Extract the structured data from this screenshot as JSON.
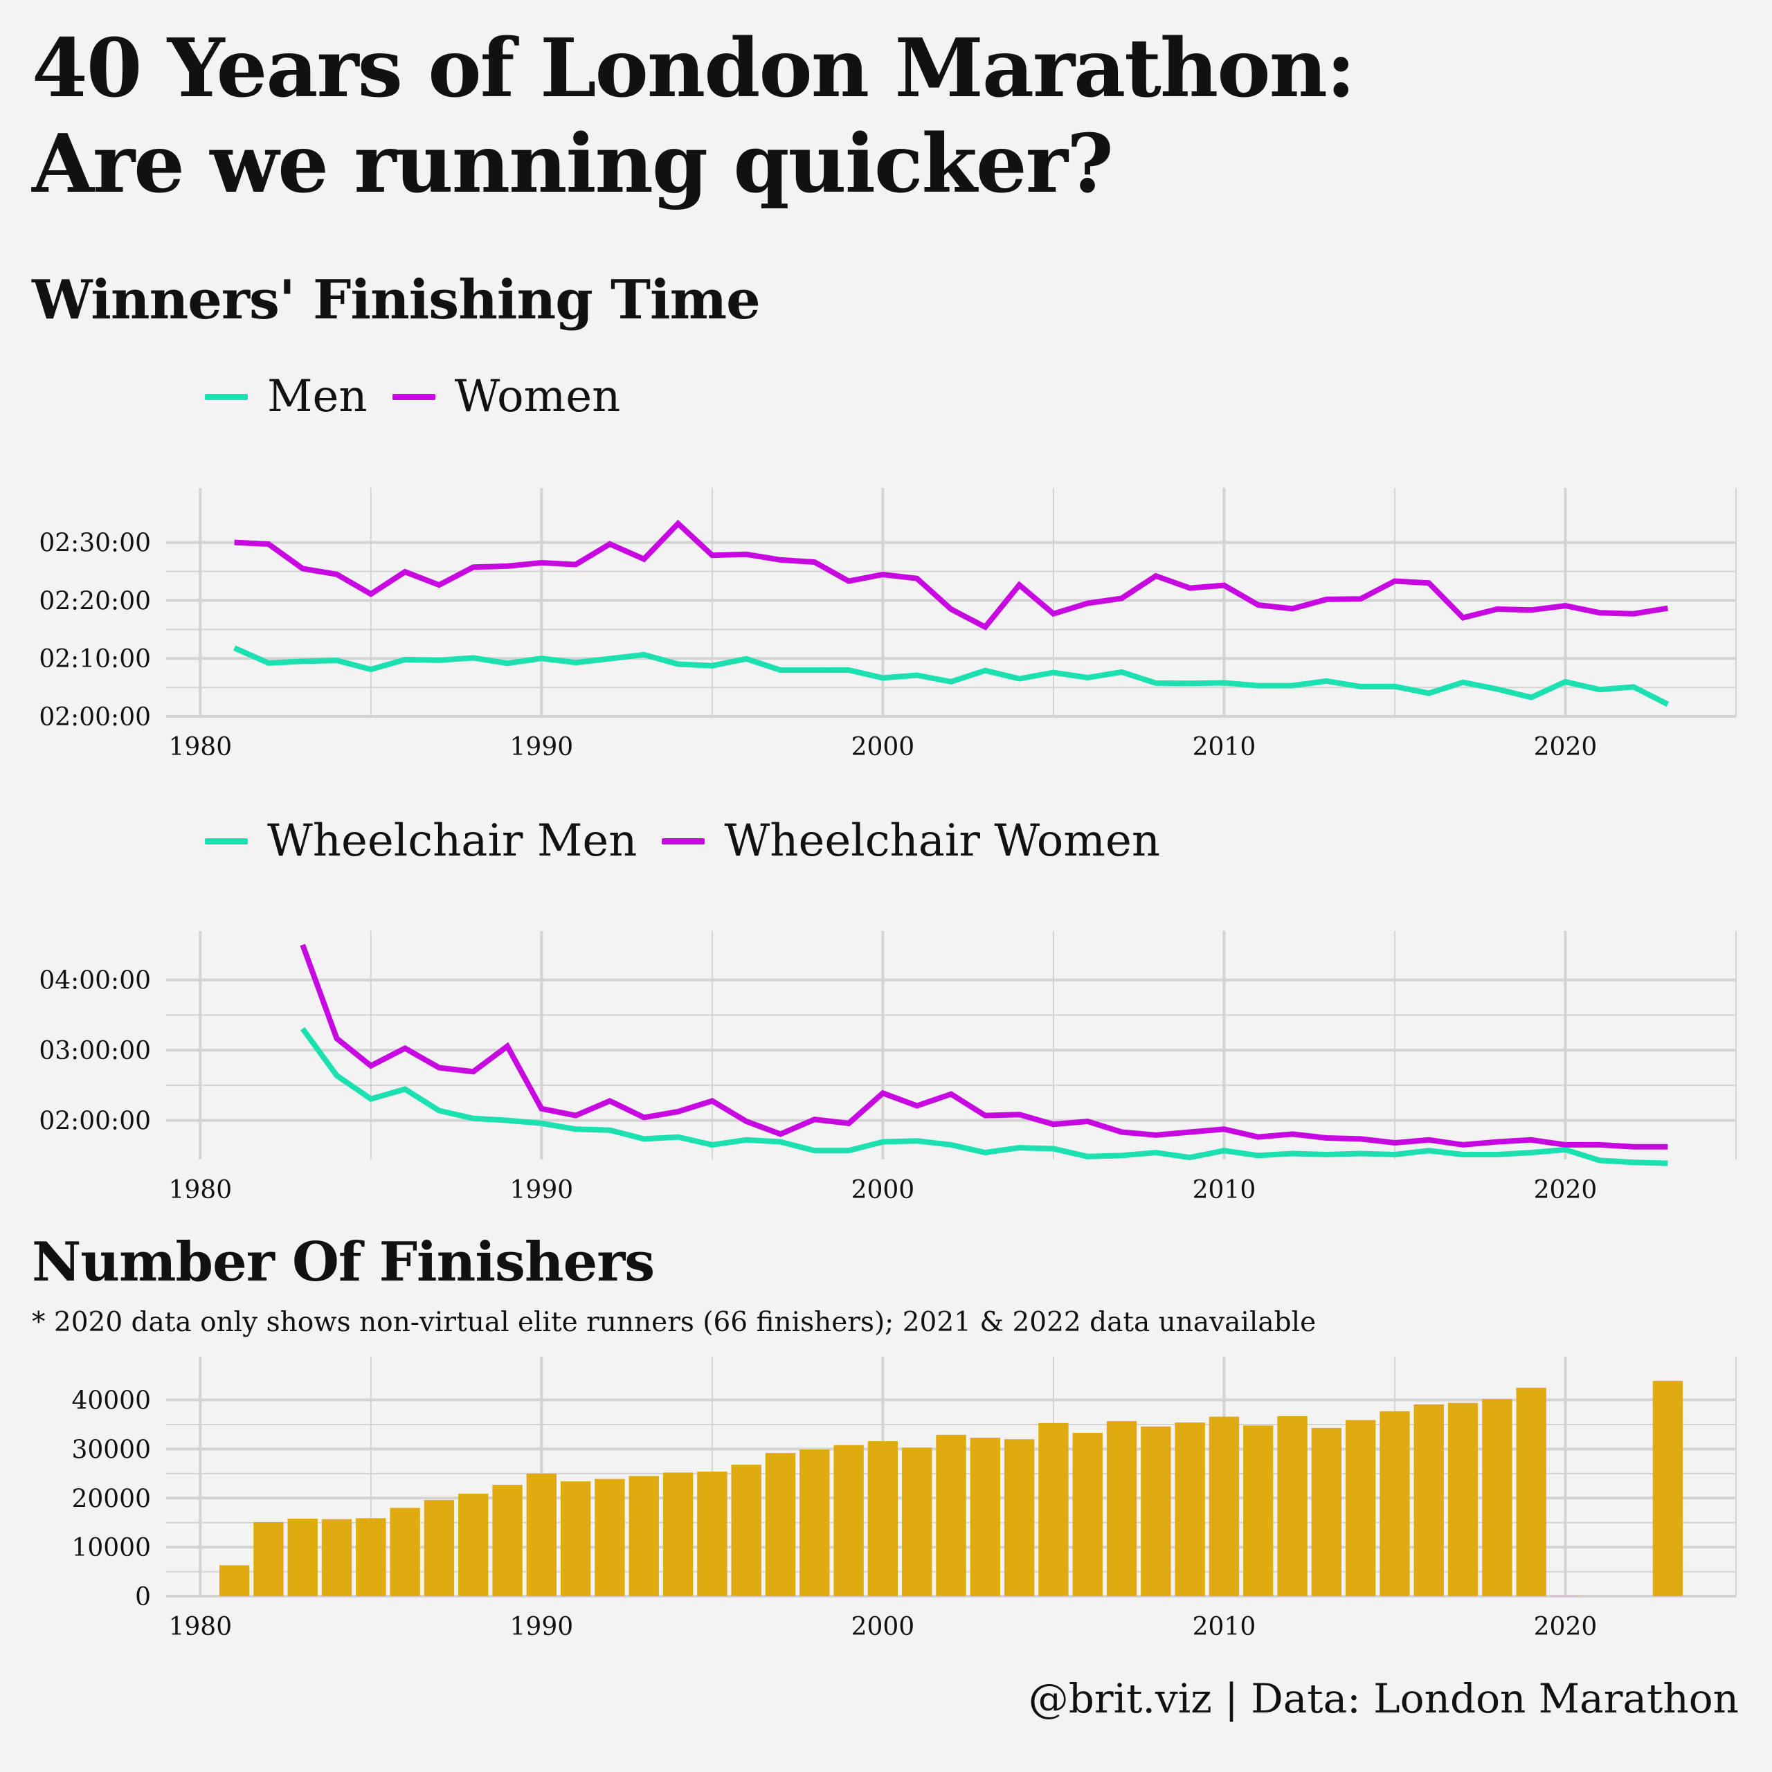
{
  "title_lines": [
    "40 Years of London Marathon:",
    "Are we running quicker?"
  ],
  "section1_title": "Winners' Finishing Time",
  "section2_title": "Number Of Finishers",
  "section2_note": "* 2020 data only shows non-virtual elite runners (66 finishers); 2021 & 2022 data unavailable",
  "caption": "@brit.viz | Data: London Marathon",
  "colors": {
    "men": "#1de0b1",
    "women": "#c808e0",
    "bars": "#e0ab10",
    "grid": "#d3d3d3",
    "background": "#f3f3f3"
  },
  "chart_data": [
    {
      "type": "line",
      "xlim": [
        1979,
        2025
      ],
      "x_ticks": [
        1980,
        1990,
        2000,
        2010,
        2020
      ],
      "ylim_seconds": [
        7200,
        9420
      ],
      "y_ticks": [
        {
          "value": 7200,
          "label": "02:00:00"
        },
        {
          "value": 7800,
          "label": "02:10:00"
        },
        {
          "value": 8400,
          "label": "02:20:00"
        },
        {
          "value": 9000,
          "label": "02:30:00"
        }
      ],
      "legend": [
        "Men",
        "Women"
      ],
      "series": [
        {
          "name": "Men",
          "color": "#1de0b1",
          "x": [
            1981,
            1982,
            1983,
            1984,
            1985,
            1986,
            1987,
            1988,
            1989,
            1990,
            1991,
            1992,
            1993,
            1994,
            1995,
            1996,
            1997,
            1998,
            1999,
            2000,
            2001,
            2002,
            2003,
            2004,
            2005,
            2006,
            2007,
            2008,
            2009,
            2010,
            2011,
            2012,
            2013,
            2014,
            2015,
            2016,
            2017,
            2018,
            2019,
            2020,
            2021,
            2022,
            2023
          ],
          "y": [
            7908,
            7752,
            7770,
            7779,
            7686,
            7788,
            7781,
            7806,
            7749,
            7800,
            7757,
            7797,
            7839,
            7741,
            7725,
            7796,
            7679,
            7679,
            7680,
            7598,
            7626,
            7559,
            7675,
            7590,
            7654,
            7602,
            7659,
            7545,
            7542,
            7547,
            7518,
            7519,
            7566,
            7509,
            7510,
            7439,
            7553,
            7483,
            7397,
            7558,
            7478,
            7505,
            7325
          ]
        },
        {
          "name": "Women",
          "color": "#c808e0",
          "x": [
            1981,
            1982,
            1983,
            1984,
            1985,
            1986,
            1987,
            1988,
            1989,
            1990,
            1991,
            1992,
            1993,
            1994,
            1995,
            1996,
            1997,
            1998,
            1999,
            2000,
            2001,
            2002,
            2003,
            2004,
            2005,
            2006,
            2007,
            2008,
            2009,
            2010,
            2011,
            2012,
            2013,
            2014,
            2015,
            2016,
            2017,
            2018,
            2019,
            2020,
            2021,
            2022,
            2023
          ],
          "y": [
            9000,
            8983,
            8730,
            8670,
            8466,
            8696,
            8560,
            8744,
            8755,
            8790,
            8771,
            8984,
            8828,
            9195,
            8867,
            8877,
            8819,
            8797,
            8599,
            8668,
            8627,
            8309,
            8125,
            8560,
            8262,
            8370,
            8422,
            8654,
            8528,
            8556,
            8353,
            8314,
            8411,
            8416,
            8600,
            8580,
            8221,
            8310,
            8301,
            8345,
            8273,
            8262,
            8319
          ]
        }
      ]
    },
    {
      "type": "line",
      "xlim": [
        1979,
        2025
      ],
      "x_ticks": [
        1980,
        1990,
        2000,
        2010,
        2020
      ],
      "ylim_seconds": [
        5200,
        16200
      ],
      "y_ticks": [
        {
          "value": 7200,
          "label": "02:00:00"
        },
        {
          "value": 10800,
          "label": "03:00:00"
        },
        {
          "value": 14400,
          "label": "04:00:00"
        }
      ],
      "legend": [
        "Wheelchair Men",
        "Wheelchair Women"
      ],
      "series": [
        {
          "name": "Wheelchair Men",
          "color": "#1de0b1",
          "x": [
            1983,
            1984,
            1985,
            1986,
            1987,
            1988,
            1989,
            1990,
            1991,
            1992,
            1993,
            1994,
            1995,
            1996,
            1997,
            1998,
            1999,
            2000,
            2001,
            2002,
            2003,
            2004,
            2005,
            2006,
            2007,
            2008,
            2009,
            2010,
            2011,
            2012,
            2013,
            2014,
            2015,
            2016,
            2017,
            2018,
            2019,
            2020,
            2021,
            2022,
            2023
          ],
          "y": [
            11900,
            9500,
            8300,
            8800,
            7700,
            7300,
            7200,
            7050,
            6750,
            6700,
            6250,
            6350,
            5950,
            6200,
            6100,
            5650,
            5650,
            6100,
            6150,
            5950,
            5550,
            5800,
            5750,
            5350,
            5400,
            5550,
            5300,
            5650,
            5400,
            5500,
            5450,
            5500,
            5450,
            5650,
            5450,
            5450,
            5550,
            5700,
            5150,
            5050,
            5000
          ]
        },
        {
          "name": "Wheelchair Women",
          "color": "#c808e0",
          "x": [
            1983,
            1984,
            1985,
            1986,
            1987,
            1988,
            1989,
            1990,
            1991,
            1992,
            1993,
            1994,
            1995,
            1996,
            1997,
            1998,
            1999,
            2000,
            2001,
            2002,
            2003,
            2004,
            2005,
            2006,
            2007,
            2008,
            2009,
            2010,
            2011,
            2012,
            2013,
            2014,
            2015,
            2016,
            2017,
            2018,
            2019,
            2020,
            2021,
            2022,
            2023
          ],
          "y": [
            16200,
            11400,
            10000,
            10900,
            9900,
            9700,
            11000,
            7800,
            7450,
            8200,
            7350,
            7650,
            8200,
            7150,
            6500,
            7250,
            7050,
            8600,
            7950,
            8550,
            7450,
            7500,
            7000,
            7150,
            6600,
            6450,
            6600,
            6750,
            6350,
            6500,
            6300,
            6250,
            6050,
            6200,
            5950,
            6100,
            6200,
            5950,
            5950,
            5850,
            5850
          ]
        }
      ]
    },
    {
      "type": "bar",
      "xlim": [
        1979,
        2025
      ],
      "x_ticks": [
        1980,
        1990,
        2000,
        2010,
        2020
      ],
      "ylim": [
        0,
        46000
      ],
      "y_ticks": [
        0,
        10000,
        20000,
        30000,
        40000
      ],
      "x": [
        1981,
        1982,
        1983,
        1984,
        1985,
        1986,
        1987,
        1988,
        1989,
        1990,
        1991,
        1992,
        1993,
        1994,
        1995,
        1996,
        1997,
        1998,
        1999,
        2000,
        2001,
        2002,
        2003,
        2004,
        2005,
        2006,
        2007,
        2008,
        2009,
        2010,
        2011,
        2012,
        2013,
        2014,
        2015,
        2016,
        2017,
        2018,
        2019,
        2020,
        2023
      ],
      "values": [
        6300,
        15100,
        15800,
        15700,
        15900,
        18000,
        19600,
        20900,
        22700,
        25000,
        23400,
        23900,
        24500,
        25200,
        25400,
        26800,
        29200,
        29900,
        30800,
        31600,
        30300,
        32900,
        32300,
        32000,
        35300,
        33300,
        35700,
        34600,
        35400,
        36600,
        34800,
        36700,
        34300,
        35900,
        37700,
        39100,
        39400,
        40200,
        42500,
        66,
        43900
      ],
      "color": "#e0ab10"
    }
  ]
}
